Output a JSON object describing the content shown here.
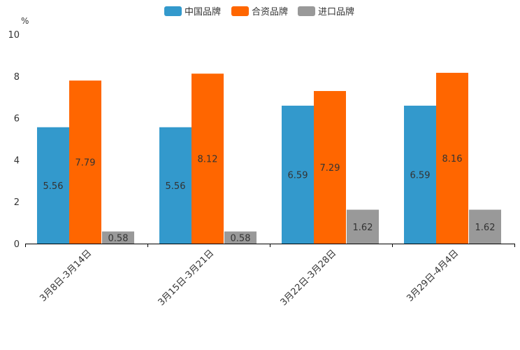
{
  "chart_data": {
    "type": "bar",
    "title": "",
    "ylabel": "%",
    "xlabel": "",
    "ylim": [
      0,
      10
    ],
    "yticks": [
      0,
      2,
      4,
      6,
      8,
      10
    ],
    "categories": [
      "3月8日-3月14日",
      "3月15日-3月21日",
      "3月22日-3月28日",
      "3月29日-4月4日"
    ],
    "series": [
      {
        "name": "中国品牌",
        "color": "#3399cc",
        "values": [
          5.56,
          5.56,
          6.59,
          6.59
        ],
        "labels": [
          "5.56",
          "5.56",
          "6.59",
          "6.59"
        ]
      },
      {
        "name": "合资品牌",
        "color": "#ff6600",
        "values": [
          7.79,
          8.12,
          7.29,
          8.16
        ],
        "labels": [
          "7.79",
          "8.12",
          "7.29",
          "8.16"
        ]
      },
      {
        "name": "进口品牌",
        "color": "#999999",
        "values": [
          0.58,
          0.58,
          1.62,
          1.62
        ],
        "labels": [
          "0.58",
          "0.58",
          "1.62",
          "1.62"
        ]
      }
    ],
    "legend_position": "top-center",
    "grid": false
  }
}
